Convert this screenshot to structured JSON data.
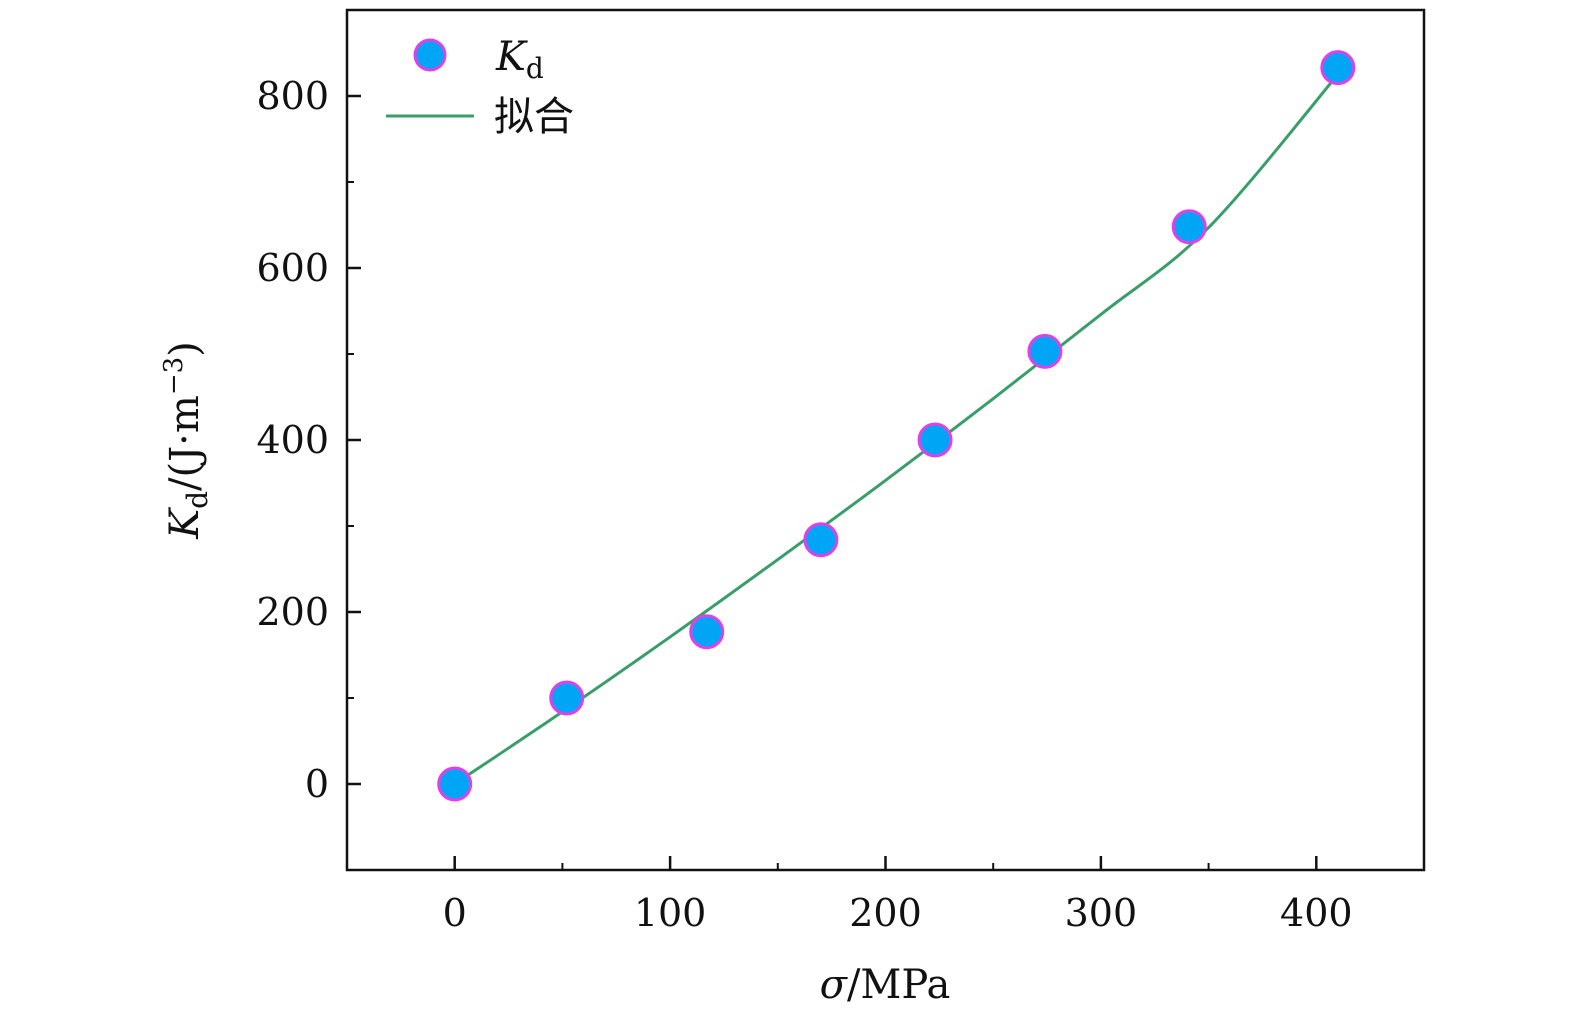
{
  "chart_data": {
    "type": "scatter",
    "title": "",
    "xlabel": {
      "symbol": "σ",
      "unit": "/MPa"
    },
    "ylabel": {
      "symbol": "K",
      "sub": "d",
      "unit": "/(J·m",
      "sup": "−3",
      "close": ")"
    },
    "xlim": [
      -50,
      450
    ],
    "ylim": [
      -100,
      900
    ],
    "xticks": [
      0,
      100,
      200,
      300,
      400
    ],
    "yticks": [
      0,
      200,
      400,
      600,
      800
    ],
    "legend_position": "top-left",
    "series": [
      {
        "name": {
          "symbol": "K",
          "sub": "d"
        },
        "kind": "scatter",
        "marker_fill": "#00a6f5",
        "marker_edge": "#e040e8",
        "x": [
          0,
          52,
          117,
          170,
          223,
          274,
          341,
          410
        ],
        "y": [
          0,
          100,
          177,
          284,
          400,
          503,
          648,
          833
        ]
      },
      {
        "name": "拟合",
        "kind": "line",
        "color": "#3a9e6a",
        "x": [
          0,
          50,
          100,
          150,
          200,
          250,
          300,
          350,
          410
        ],
        "y": [
          0,
          84,
          171,
          261,
          353,
          448,
          546,
          647,
          825
        ]
      }
    ]
  }
}
